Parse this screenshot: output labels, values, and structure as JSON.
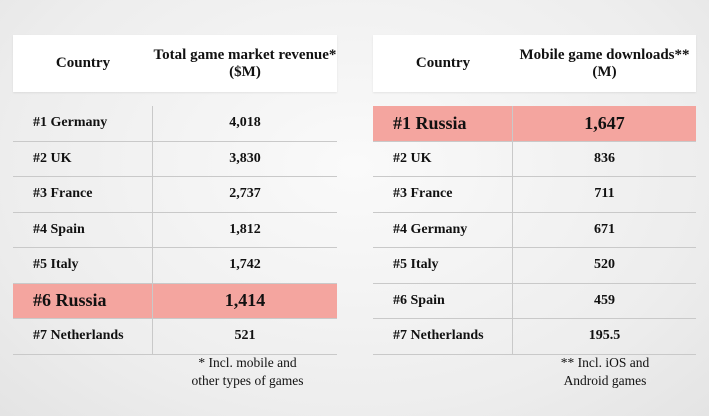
{
  "chart_data": [
    {
      "type": "table",
      "columns": [
        "Country",
        "Total game market revenue* ($M)"
      ],
      "rows": [
        {
          "country": "#1 Germany",
          "value": "4,018",
          "highlight": false
        },
        {
          "country": "#2 UK",
          "value": "3,830",
          "highlight": false
        },
        {
          "country": "#3 France",
          "value": "2,737",
          "highlight": false
        },
        {
          "country": "#4 Spain",
          "value": "1,812",
          "highlight": false
        },
        {
          "country": "#5 Italy",
          "value": "1,742",
          "highlight": false
        },
        {
          "country": "#6 Russia",
          "value": "1,414",
          "highlight": true
        },
        {
          "country": "#7 Netherlands",
          "value": "521",
          "highlight": false
        }
      ],
      "footnote": [
        "* Incl. mobile and",
        "other types of games"
      ]
    },
    {
      "type": "table",
      "columns": [
        "Country",
        "Mobile game downloads** (M)"
      ],
      "rows": [
        {
          "country": "#1 Russia",
          "value": "1,647",
          "highlight": true
        },
        {
          "country": "#2 UK",
          "value": "836",
          "highlight": false
        },
        {
          "country": "#3 France",
          "value": "711",
          "highlight": false
        },
        {
          "country": "#4 Germany",
          "value": "671",
          "highlight": false
        },
        {
          "country": "#5 Italy",
          "value": "520",
          "highlight": false
        },
        {
          "country": "#6 Spain",
          "value": "459",
          "highlight": false
        },
        {
          "country": "#7 Netherlands",
          "value": "195.5",
          "highlight": false
        }
      ],
      "footnote": [
        "** Incl. iOS and",
        "Android games"
      ]
    }
  ],
  "colors": {
    "highlight": "#f4a59f",
    "header_bg": "#ffffff",
    "divider": "#c9c9c9"
  }
}
